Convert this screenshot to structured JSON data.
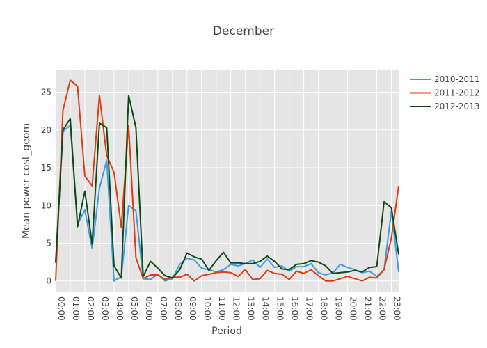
{
  "chart_data": {
    "type": "line",
    "title": "December",
    "xlabel": "Period",
    "ylabel": "Mean power cost_geom",
    "ylim": [
      -1.5,
      28
    ],
    "yticks": [
      0,
      5,
      10,
      15,
      20,
      25
    ],
    "grid": true,
    "legend_position": "top-right",
    "background": "#e5e5e5",
    "x": [
      "00:00",
      "00:30",
      "01:00",
      "01:30",
      "02:00",
      "02:30",
      "03:00",
      "03:30",
      "04:00",
      "04:30",
      "05:00",
      "05:30",
      "06:00",
      "06:30",
      "07:00",
      "07:30",
      "08:00",
      "08:30",
      "09:00",
      "09:30",
      "10:00",
      "10:30",
      "11:00",
      "11:30",
      "12:00",
      "12:30",
      "13:00",
      "13:30",
      "14:00",
      "14:30",
      "15:00",
      "15:30",
      "16:00",
      "16:30",
      "17:00",
      "17:30",
      "18:00",
      "18:30",
      "19:00",
      "19:30",
      "20:00",
      "20:30",
      "21:00",
      "21:30",
      "22:00",
      "22:30",
      "23:00",
      "23:30"
    ],
    "xticklabels": [
      "00:00",
      "01:00",
      "02:00",
      "03:00",
      "04:00",
      "05:00",
      "06:00",
      "07:00",
      "08:00",
      "09:00",
      "10:00",
      "11:00",
      "12:00",
      "13:00",
      "14:00",
      "15:00",
      "16:00",
      "17:00",
      "18:00",
      "19:00",
      "20:00",
      "21:00",
      "22:00",
      "23:00"
    ],
    "series": [
      {
        "name": "2010-2011",
        "color": "#3d9ae6",
        "values": [
          2.5,
          19.8,
          20.6,
          7.5,
          9.4,
          4.3,
          12.3,
          16.0,
          0.0,
          0.6,
          10.0,
          9.3,
          0.3,
          0.2,
          0.9,
          0.0,
          0.3,
          2.2,
          3.0,
          2.8,
          1.7,
          1.5,
          1.2,
          1.5,
          2.2,
          2.0,
          2.3,
          2.8,
          1.8,
          2.9,
          1.8,
          2.0,
          1.3,
          1.9,
          1.9,
          2.3,
          1.1,
          0.8,
          1.1,
          2.2,
          1.8,
          1.5,
          1.1,
          1.3,
          0.6,
          1.5,
          9.3,
          1.2
        ]
      },
      {
        "name": "2011-2012",
        "color": "#e03a0e",
        "values": [
          0.0,
          22.6,
          26.6,
          25.8,
          13.9,
          12.6,
          24.6,
          16.6,
          14.4,
          7.1,
          20.6,
          3.1,
          0.3,
          0.8,
          0.8,
          0.2,
          0.5,
          0.5,
          0.9,
          0.0,
          0.7,
          0.9,
          1.1,
          1.2,
          1.1,
          0.6,
          1.5,
          0.2,
          0.3,
          1.4,
          1.0,
          0.9,
          0.2,
          1.3,
          1.0,
          1.5,
          0.7,
          0.0,
          0.0,
          0.3,
          0.6,
          0.3,
          0.0,
          0.5,
          0.4,
          1.5,
          5.7,
          12.6
        ]
      },
      {
        "name": "2012-2013",
        "color": "#0f4a12",
        "values": [
          2.4,
          20.0,
          21.5,
          7.2,
          11.9,
          4.9,
          20.9,
          20.3,
          2.0,
          0.4,
          24.6,
          20.3,
          0.6,
          2.6,
          1.7,
          0.7,
          0.4,
          1.5,
          3.7,
          3.2,
          2.9,
          1.4,
          2.7,
          3.8,
          2.4,
          2.4,
          2.3,
          2.3,
          2.6,
          3.3,
          2.6,
          1.6,
          1.5,
          2.2,
          2.3,
          2.7,
          2.5,
          2.0,
          1.0,
          1.1,
          1.2,
          1.4,
          1.2,
          1.8,
          1.9,
          10.5,
          9.7,
          3.5
        ]
      }
    ]
  }
}
